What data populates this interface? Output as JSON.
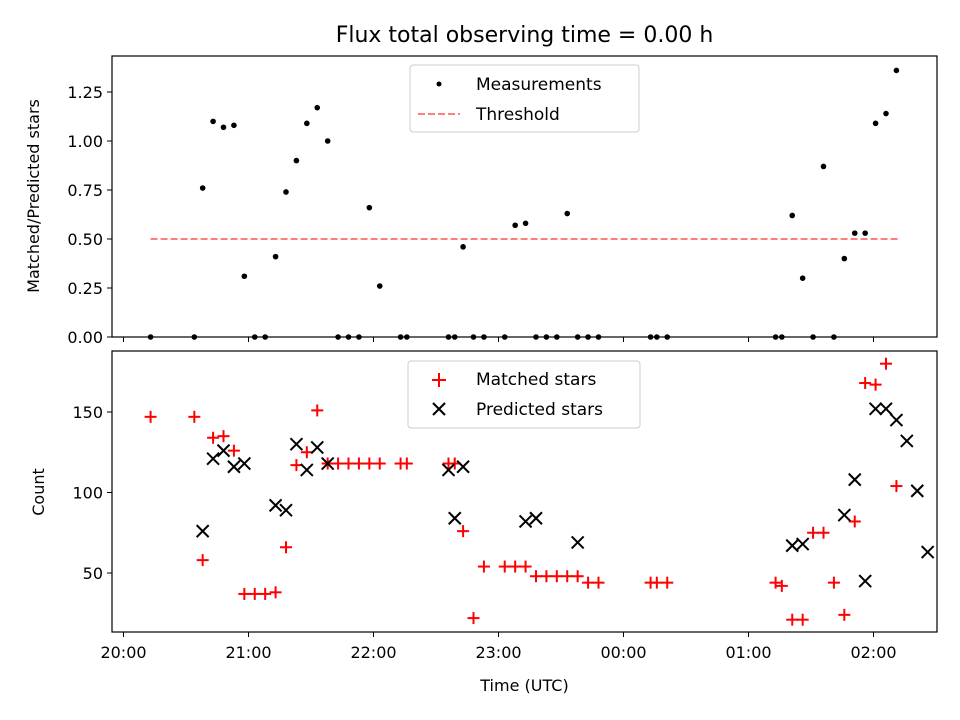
{
  "chart_data": [
    {
      "type": "scatter",
      "title": "Flux total observing time = 0.00 h",
      "xlabel": "",
      "ylabel": "Matched/Predicted stars",
      "xlim": [
        "20:00",
        "02:30"
      ],
      "ylim": [
        0,
        1.43
      ],
      "yticks": [
        "0.00",
        "0.25",
        "0.50",
        "0.75",
        "1.00",
        "1.25"
      ],
      "legend_position": "top-center",
      "series": [
        {
          "name": "Measurements",
          "marker": "dot",
          "color": "#000000",
          "x": [
            "20:13",
            "20:34",
            "20:38",
            "20:43",
            "20:48",
            "20:53",
            "20:58",
            "21:03",
            "21:08",
            "21:13",
            "21:18",
            "21:23",
            "21:28",
            "21:33",
            "21:38",
            "21:43",
            "21:48",
            "21:53",
            "21:58",
            "22:03",
            "22:13",
            "22:16",
            "22:36",
            "22:39",
            "22:43",
            "22:48",
            "22:53",
            "23:03",
            "23:08",
            "23:13",
            "23:18",
            "23:23",
            "23:28",
            "23:33",
            "23:38",
            "23:43",
            "23:48",
            "00:13",
            "00:16",
            "00:21",
            "01:13",
            "01:16",
            "01:21",
            "01:26",
            "01:31",
            "01:36",
            "01:41",
            "01:46",
            "01:51",
            "01:56",
            "02:01",
            "02:06",
            "02:11"
          ],
          "y": [
            0,
            0,
            0.76,
            1.1,
            1.07,
            1.08,
            0.31,
            0,
            0,
            0.41,
            0.74,
            0.9,
            1.09,
            1.17,
            1.0,
            0,
            0,
            0,
            0.66,
            0.26,
            0,
            0,
            0,
            0,
            0.46,
            0,
            0,
            0,
            0.57,
            0.58,
            0,
            0,
            0,
            0.63,
            0,
            0,
            0,
            0,
            0,
            0,
            0,
            0,
            0.62,
            0.3,
            0,
            0.87,
            0,
            0.4,
            0.53,
            0.53,
            1.09,
            1.14,
            1.36
          ]
        },
        {
          "name": "Threshold",
          "style": "dashed",
          "color": "#ff7f7f",
          "x": [
            "20:13",
            "02:13"
          ],
          "y": [
            0.5,
            0.5
          ]
        }
      ]
    },
    {
      "type": "scatter",
      "title": "",
      "xlabel": "Time (UTC)",
      "ylabel": "Count",
      "xlim": [
        "20:00",
        "02:30"
      ],
      "ylim": [
        12,
        188
      ],
      "yticks": [
        "50",
        "100",
        "150"
      ],
      "xticks": [
        "20:00",
        "21:00",
        "22:00",
        "23:00",
        "00:00",
        "01:00",
        "02:00"
      ],
      "legend_position": "top-center",
      "series": [
        {
          "name": "Matched stars",
          "marker": "plus",
          "color": "#ff0000",
          "x": [
            "20:13",
            "20:34",
            "20:38",
            "20:43",
            "20:48",
            "20:53",
            "20:58",
            "21:03",
            "21:08",
            "21:13",
            "21:18",
            "21:23",
            "21:28",
            "21:33",
            "21:38",
            "21:43",
            "21:48",
            "21:53",
            "21:58",
            "22:03",
            "22:13",
            "22:16",
            "22:36",
            "22:39",
            "22:43",
            "22:48",
            "22:53",
            "23:03",
            "23:08",
            "23:13",
            "23:18",
            "23:23",
            "23:28",
            "23:33",
            "23:38",
            "23:43",
            "23:48",
            "00:13",
            "00:16",
            "00:21",
            "01:13",
            "01:16",
            "01:21",
            "01:26",
            "01:31",
            "01:36",
            "01:41",
            "01:46",
            "01:51",
            "01:56",
            "02:01",
            "02:06",
            "02:11"
          ],
          "y": [
            147,
            147,
            58,
            134,
            135,
            126,
            37,
            37,
            37,
            38,
            66,
            117,
            125,
            151,
            118,
            118,
            118,
            118,
            118,
            118,
            118,
            118,
            118,
            118,
            76,
            22,
            54,
            54,
            54,
            54,
            48,
            48,
            48,
            48,
            48,
            44,
            44,
            44,
            44,
            44,
            44,
            42,
            21,
            21,
            75,
            75,
            44,
            24,
            82,
            168,
            167,
            180,
            104
          ]
        },
        {
          "name": "Predicted stars",
          "marker": "x",
          "color": "#000000",
          "x": [
            "20:38",
            "20:43",
            "20:48",
            "20:53",
            "20:58",
            "21:13",
            "21:18",
            "21:23",
            "21:28",
            "21:33",
            "21:38",
            "22:36",
            "22:39",
            "22:43",
            "23:13",
            "23:18",
            "23:38",
            "01:21",
            "01:26",
            "01:46",
            "01:51",
            "01:56",
            "02:01",
            "02:06",
            "02:11",
            "02:16",
            "02:21",
            "02:26"
          ],
          "y": [
            76,
            121,
            126,
            116,
            118,
            92,
            89,
            130,
            114,
            128,
            118,
            114,
            84,
            116,
            82,
            84,
            69,
            67,
            68,
            86,
            108,
            45,
            152,
            152,
            145,
            132,
            101,
            63
          ]
        }
      ]
    }
  ]
}
